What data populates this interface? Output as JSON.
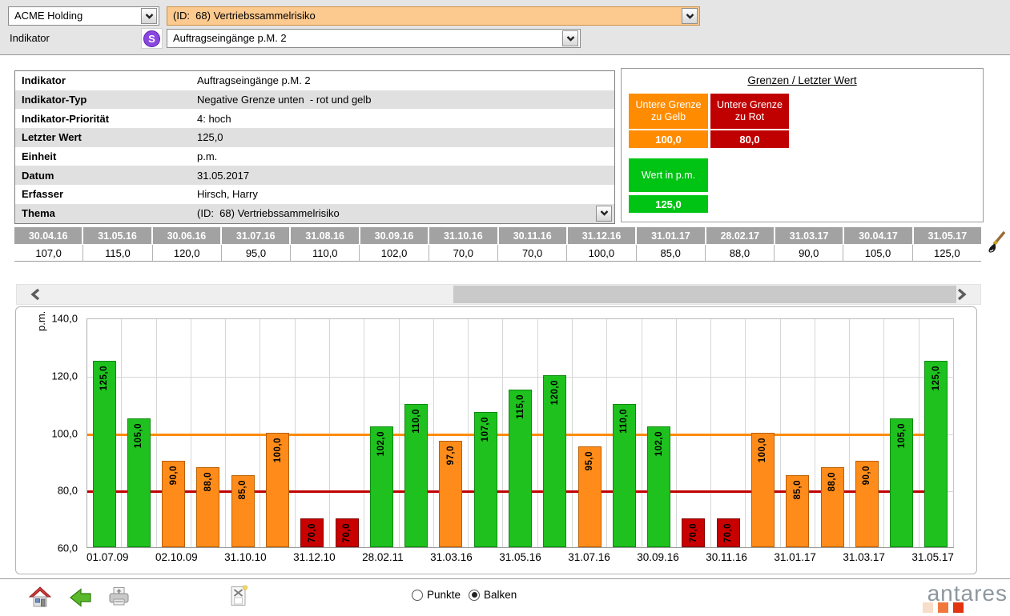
{
  "topbar": {
    "company_select": "ACME Holding",
    "risk_select": "(ID:  68) Vertriebssammelrisiko",
    "indikator_label": "Indikator",
    "s_icon": "S",
    "indicator_select": "Auftragseingänge p.M. 2"
  },
  "info_table": {
    "rows": [
      {
        "label": "Indikator",
        "value": "Auftragseingänge p.M. 2"
      },
      {
        "label": "Indikator-Typ",
        "value": "Negative Grenze unten  - rot und gelb"
      },
      {
        "label": "Indikator-Priorität",
        "value": "4: hoch"
      },
      {
        "label": "Letzter Wert",
        "value": "125,0"
      },
      {
        "label": "Einheit",
        "value": "p.m."
      },
      {
        "label": "Datum",
        "value": "31.05.2017"
      },
      {
        "label": "Erfasser",
        "value": "Hirsch, Harry"
      },
      {
        "label": "Thema",
        "value": "(ID:  68) Vertriebssammelrisiko",
        "has_dropdown": true
      }
    ]
  },
  "grenzen_panel": {
    "title": "Grenzen / Letzter Wert",
    "yellow_limit": {
      "label": "Untere Grenze\nzu Gelb",
      "value": "100,0",
      "color": "#ff8c00"
    },
    "red_limit": {
      "label": "Untere Grenze\nzu Rot",
      "value": "80,0",
      "color": "#c00000"
    },
    "current": {
      "label": "Wert in p.m.",
      "value": "125,0",
      "color": "#00c414"
    }
  },
  "history_table": {
    "columns": [
      "30.04.16",
      "31.05.16",
      "30.06.16",
      "31.07.16",
      "31.08.16",
      "30.09.16",
      "31.10.16",
      "30.11.16",
      "31.12.16",
      "31.01.17",
      "28.02.17",
      "31.03.17",
      "30.04.17",
      "31.05.17"
    ],
    "values": [
      "107,0",
      "115,0",
      "120,0",
      "95,0",
      "110,0",
      "102,0",
      "70,0",
      "70,0",
      "100,0",
      "85,0",
      "88,0",
      "90,0",
      "105,0",
      "125,0"
    ]
  },
  "chart_data": {
    "type": "bar",
    "title": "",
    "xlabel": "",
    "ylabel": "p.m.",
    "ylim": [
      60,
      140
    ],
    "grid": true,
    "legend": "none",
    "yticks": [
      {
        "value": 140,
        "label": "140,0"
      },
      {
        "value": 120,
        "label": "120,0"
      },
      {
        "value": 100,
        "label": "100,0"
      },
      {
        "value": 80,
        "label": "80,0"
      },
      {
        "value": 60,
        "label": "60,0"
      }
    ],
    "colors": {
      "green": {
        "fill": "#1ec11e",
        "edge": "#0f8a0f"
      },
      "yellow": {
        "fill": "#ff8c1a",
        "edge": "#b86000"
      },
      "red": {
        "fill": "#c80000",
        "edge": "#800000"
      }
    },
    "thresholds": [
      {
        "name": "untere-grenze-gelb",
        "value": 100,
        "color": "#ff8c00"
      },
      {
        "name": "untere-grenze-rot",
        "value": 80,
        "color": "#c00000"
      }
    ],
    "bars": [
      {
        "value": 125,
        "label": "125,0",
        "status": "green",
        "x_label": "01.07.09"
      },
      {
        "value": 105,
        "label": "105,0",
        "status": "green"
      },
      {
        "value": 90,
        "label": "90,0",
        "status": "yellow",
        "x_label": "02.10.09"
      },
      {
        "value": 88,
        "label": "88,0",
        "status": "yellow"
      },
      {
        "value": 85,
        "label": "85,0",
        "status": "yellow",
        "x_label": "31.10.10"
      },
      {
        "value": 100,
        "label": "100,0",
        "status": "yellow"
      },
      {
        "value": 70,
        "label": "70,0",
        "status": "red",
        "x_label": "31.12.10"
      },
      {
        "value": 70,
        "label": "70,0",
        "status": "red"
      },
      {
        "value": 102,
        "label": "102,0",
        "status": "green",
        "x_label": "28.02.11"
      },
      {
        "value": 110,
        "label": "110,0",
        "status": "green"
      },
      {
        "value": 97,
        "label": "97,0",
        "status": "yellow",
        "x_label": "31.03.16"
      },
      {
        "value": 107,
        "label": "107,0",
        "status": "green"
      },
      {
        "value": 115,
        "label": "115,0",
        "status": "green",
        "x_label": "31.05.16"
      },
      {
        "value": 120,
        "label": "120,0",
        "status": "green"
      },
      {
        "value": 95,
        "label": "95,0",
        "status": "yellow",
        "x_label": "31.07.16"
      },
      {
        "value": 110,
        "label": "110,0",
        "status": "green"
      },
      {
        "value": 102,
        "label": "102,0",
        "status": "green",
        "x_label": "30.09.16"
      },
      {
        "value": 70,
        "label": "70,0",
        "status": "red"
      },
      {
        "value": 70,
        "label": "70,0",
        "status": "red",
        "x_label": "30.11.16"
      },
      {
        "value": 100,
        "label": "100,0",
        "status": "yellow"
      },
      {
        "value": 85,
        "label": "85,0",
        "status": "yellow",
        "x_label": "31.01.17"
      },
      {
        "value": 88,
        "label": "88,0",
        "status": "yellow"
      },
      {
        "value": 90,
        "label": "90,0",
        "status": "yellow",
        "x_label": "31.03.17"
      },
      {
        "value": 105,
        "label": "105,0",
        "status": "green"
      },
      {
        "value": 125,
        "label": "125,0",
        "status": "green",
        "x_label": "31.05.17"
      }
    ]
  },
  "toolbar": {
    "points_label": "Punkte",
    "bars_label": "Balken",
    "selected_mode": "Balken"
  },
  "logo": {
    "text": "antares"
  }
}
